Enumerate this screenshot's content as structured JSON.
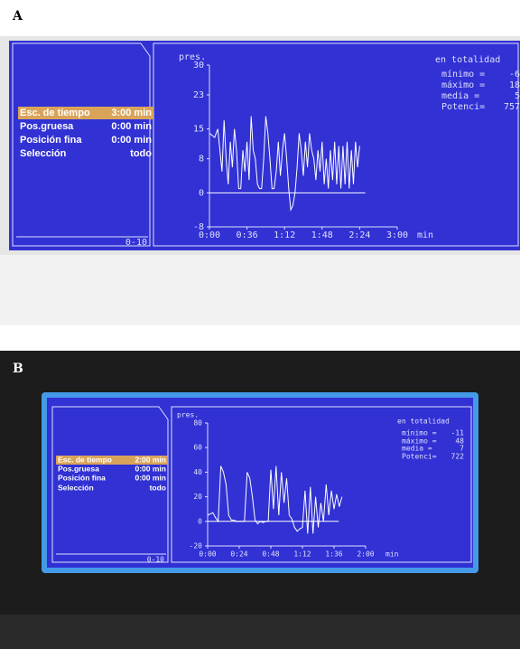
{
  "panels": [
    {
      "label": "A",
      "menu": [
        [
          "Esc. de tiempo",
          "3:00 min"
        ],
        [
          "Pos.gruesa",
          "0:00 min"
        ],
        [
          "Posición fina",
          "0:00 min"
        ],
        [
          "Selección",
          "todo"
        ]
      ],
      "range": "0-10",
      "stats_title": "en totalidad",
      "stats": [
        [
          "mínimo =",
          "-6"
        ],
        [
          "máximo =",
          "18"
        ],
        [
          "media =",
          "5"
        ],
        [
          "Potenci=",
          "757"
        ]
      ]
    },
    {
      "label": "B",
      "menu": [
        [
          "Esc. de tiempo",
          "2:00 min"
        ],
        [
          "Pos.gruesa",
          "0:00 min"
        ],
        [
          "Posición fina",
          "0:00 min"
        ],
        [
          "Selección",
          "todo"
        ]
      ],
      "range": "0-10",
      "stats_title": "en totalidad",
      "stats": [
        [
          "mínimo =",
          "-11"
        ],
        [
          "máximo =",
          "48"
        ],
        [
          "media =",
          "7"
        ],
        [
          "Potenci=",
          "722"
        ]
      ]
    }
  ],
  "chart_data": [
    {
      "type": "line",
      "y_label": "pres.",
      "x_label": "min",
      "color": "#ffffff",
      "xlim": [
        0,
        180
      ],
      "xticks": [
        {
          "value": 0,
          "label": "0:00"
        },
        {
          "value": 36,
          "label": "0:36"
        },
        {
          "value": 72,
          "label": "1:12"
        },
        {
          "value": 108,
          "label": "1:48"
        },
        {
          "value": 144,
          "label": "2:24"
        },
        {
          "value": 180,
          "label": "3:00"
        }
      ],
      "ylim": [
        -8,
        30
      ],
      "yticks": [
        -8,
        0,
        8,
        15,
        23,
        30
      ],
      "x": [
        0,
        5,
        8,
        10,
        12,
        14,
        16,
        18,
        20,
        22,
        24,
        26,
        28,
        30,
        32,
        34,
        36,
        38,
        40,
        42,
        44,
        46,
        48,
        50,
        52,
        54,
        56,
        58,
        60,
        62,
        64,
        66,
        68,
        70,
        72,
        74,
        76,
        78,
        80,
        82,
        84,
        86,
        88,
        90,
        92,
        94,
        96,
        98,
        100,
        102,
        104,
        106,
        108,
        110,
        112,
        114,
        116,
        118,
        120,
        122,
        124,
        126,
        128,
        130,
        132,
        134,
        136,
        138,
        140,
        142,
        144
      ],
      "values": [
        14,
        13,
        15,
        10,
        5,
        17,
        8,
        2,
        12,
        6,
        15,
        10,
        1,
        1,
        10,
        5,
        12,
        3,
        18,
        10,
        8,
        2,
        1,
        1,
        8,
        18,
        14,
        8,
        1,
        1,
        5,
        12,
        4,
        10,
        14,
        8,
        1,
        -4,
        -3,
        0,
        6,
        14,
        10,
        4,
        12,
        6,
        14,
        10,
        8,
        3,
        10,
        5,
        12,
        2,
        8,
        1,
        10,
        3,
        12,
        2,
        11,
        1,
        11,
        2,
        12,
        1,
        10,
        2,
        12,
        6,
        11
      ]
    },
    {
      "type": "line",
      "y_label": "pres.",
      "x_label": "min",
      "color": "#ffffff",
      "xlim": [
        0,
        120
      ],
      "xticks": [
        {
          "value": 0,
          "label": "0:00"
        },
        {
          "value": 24,
          "label": "0:24"
        },
        {
          "value": 48,
          "label": "0:48"
        },
        {
          "value": 72,
          "label": "1:12"
        },
        {
          "value": 96,
          "label": "1:36"
        },
        {
          "value": 120,
          "label": "2:00"
        }
      ],
      "ylim": [
        -20,
        80
      ],
      "yticks": [
        -20,
        0,
        20,
        40,
        60,
        80
      ],
      "x": [
        0,
        2,
        4,
        6,
        8,
        10,
        12,
        14,
        16,
        18,
        20,
        22,
        24,
        26,
        28,
        30,
        32,
        34,
        36,
        38,
        40,
        42,
        44,
        46,
        48,
        50,
        52,
        54,
        56,
        58,
        60,
        62,
        64,
        66,
        68,
        70,
        72,
        74,
        76,
        78,
        80,
        82,
        84,
        86,
        88,
        90,
        92,
        94,
        96,
        98,
        100,
        102
      ],
      "values": [
        5,
        6,
        7,
        3,
        0,
        45,
        40,
        30,
        5,
        1,
        1,
        0,
        0,
        0,
        0,
        40,
        35,
        20,
        1,
        -2,
        0,
        -1,
        0,
        0,
        42,
        10,
        45,
        5,
        40,
        15,
        35,
        5,
        2,
        -5,
        -8,
        -6,
        -5,
        25,
        -10,
        28,
        -10,
        20,
        -5,
        15,
        0,
        30,
        5,
        25,
        10,
        22,
        12,
        20
      ]
    }
  ]
}
